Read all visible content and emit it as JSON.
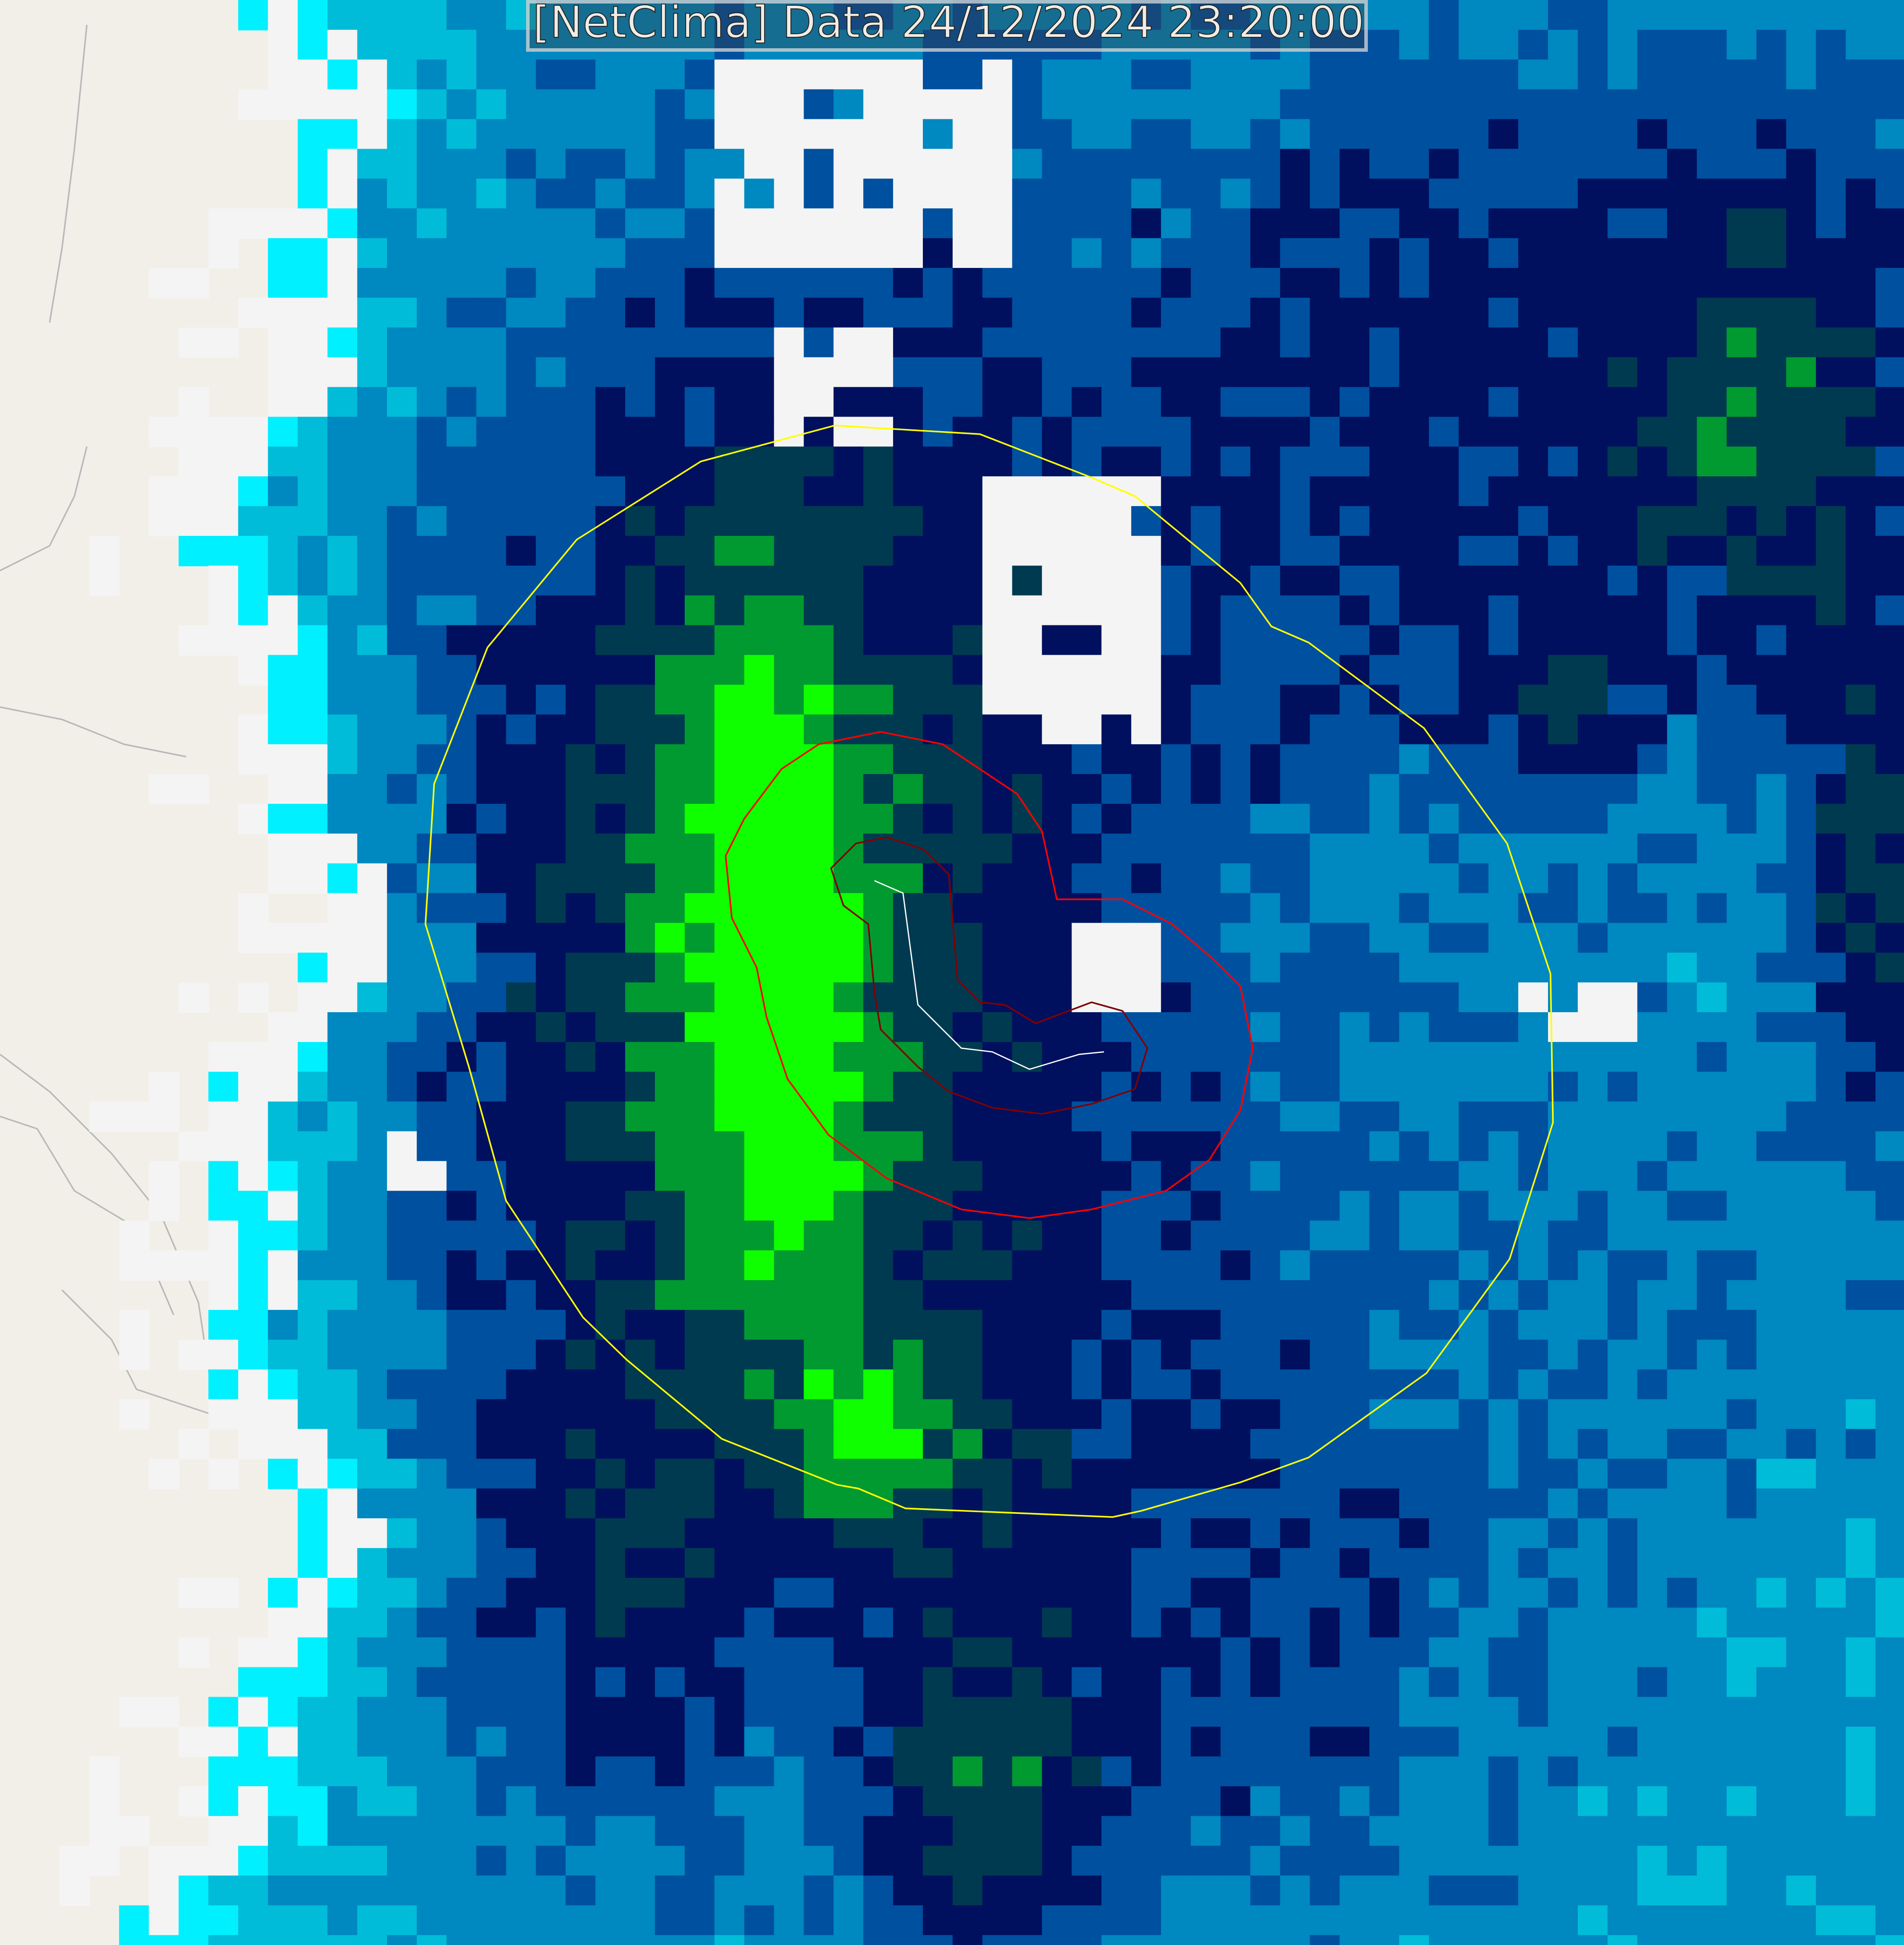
{
  "title": "[NetClima] Data 24/12/2024 23:20:00",
  "map": {
    "basemap_color": "#f2efe9",
    "road_color": "#b8b8b8",
    "palette": [
      "#f2efe9",
      "#f4f4f4",
      "#00f0ff",
      "#00bcd8",
      "#0088c0",
      "#0050a0",
      "#00105e",
      "#003a50",
      "#009a30",
      "#10ff00"
    ],
    "contours": [
      {
        "color": "#ffff00"
      },
      {
        "color": "#ff0000"
      },
      {
        "color": "#800000"
      },
      {
        "color": "#ffffff"
      }
    ]
  }
}
